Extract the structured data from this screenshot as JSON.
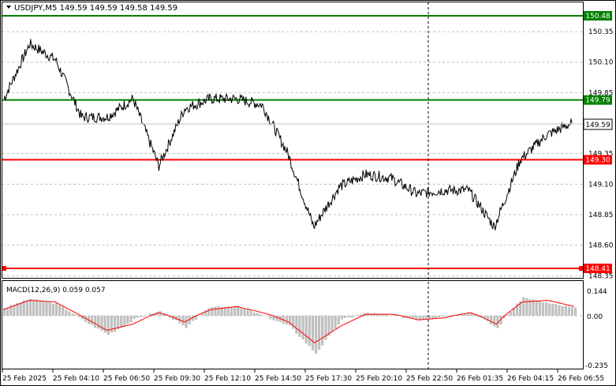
{
  "window": {
    "symbol_line": "USDJPY,M5  149.59 149.59 149.58 149.59",
    "menu_icon": "triangle-down-icon"
  },
  "price_panel": {
    "y_ticks": [
      "150.35",
      "150.10",
      "149.85",
      "149.35",
      "149.10",
      "148.85",
      "148.60",
      "148.35"
    ],
    "levels": [
      {
        "label": "150.48",
        "value": 150.48,
        "color": "#008000"
      },
      {
        "label": "149.79",
        "value": 149.79,
        "color": "#008000"
      },
      {
        "label": "149.30",
        "value": 149.3,
        "color": "#ff0000"
      },
      {
        "label": "148.41",
        "value": 148.41,
        "color": "#ff0000"
      }
    ],
    "current": {
      "label": "149.59",
      "value": 149.59
    },
    "grid_color": "#c0c0c0"
  },
  "macd_panel": {
    "title": "MACD(12,26,9) 0.059 0.057",
    "y_ticks": [
      "0.144",
      "0.00",
      "-0.235"
    ],
    "histogram_color": "#c0c0c0",
    "signal_color": "#ff0000"
  },
  "time_axis": {
    "labels": [
      "25 Feb 2025",
      "25 Feb 04:10",
      "25 Feb 06:50",
      "25 Feb 09:30",
      "25 Feb 12:10",
      "25 Feb 14:50",
      "25 Feb 17:30",
      "25 Feb 20:10",
      "25 Feb 22:50",
      "26 Feb 01:35",
      "26 Feb 04:15",
      "26 Feb 06:55"
    ]
  },
  "chart_data": {
    "type": "line",
    "title": "USDJPY,M5",
    "ylim": [
      148.35,
      150.5
    ],
    "x": [
      "25 Feb 2025",
      "",
      "25 Feb 04:10",
      "",
      "25 Feb 06:50",
      "",
      "25 Feb 09:30",
      "",
      "25 Feb 12:10",
      "",
      "25 Feb 14:50",
      "",
      "25 Feb 17:30",
      "",
      "25 Feb 20:10",
      "",
      "25 Feb 22:50",
      "",
      "26 Feb 01:35",
      "",
      "26 Feb 04:15",
      "",
      "26 Feb 06:55"
    ],
    "series": [
      {
        "values": [
          149.8,
          150.25,
          150.12,
          149.65,
          149.65,
          149.8,
          149.25,
          149.72,
          149.8,
          149.8,
          149.75,
          149.35,
          148.75,
          149.08,
          149.18,
          149.15,
          149.02,
          149.05,
          149.05,
          148.75,
          149.3,
          149.5,
          149.6
        ]
      }
    ],
    "macd": {
      "ylim": [
        -0.235,
        0.144
      ],
      "histogram": [
        0.05,
        0.11,
        0.08,
        -0.02,
        -0.09,
        -0.02,
        0.03,
        -0.06,
        0.06,
        0.06,
        0.0,
        -0.05,
        -0.18,
        -0.02,
        0.02,
        0.0,
        -0.02,
        0.0,
        0.02,
        -0.06,
        0.12,
        0.08,
        0.05
      ],
      "signal": [
        0.04,
        0.1,
        0.09,
        0.0,
        -0.07,
        -0.04,
        0.02,
        -0.03,
        0.04,
        0.06,
        0.02,
        -0.03,
        -0.13,
        -0.05,
        0.01,
        0.01,
        -0.02,
        -0.01,
        0.02,
        -0.04,
        0.09,
        0.1,
        0.06
      ]
    }
  }
}
